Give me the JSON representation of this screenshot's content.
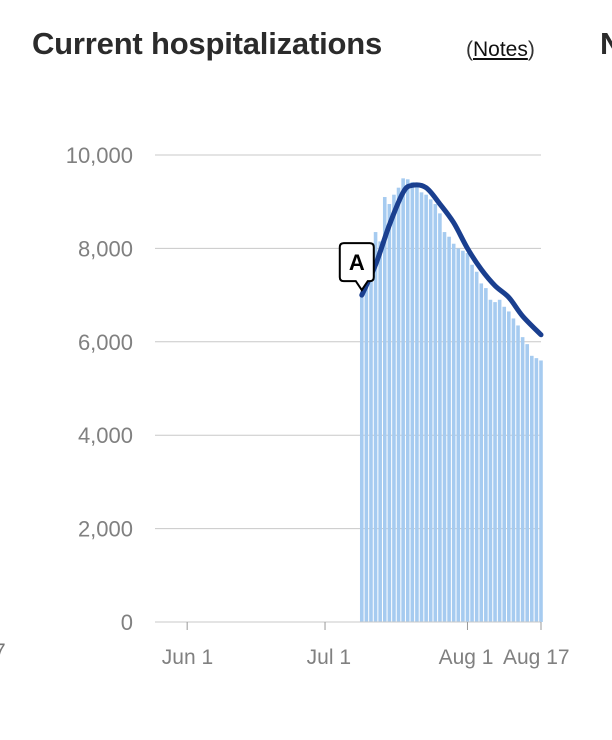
{
  "header": {
    "title": "Current hospitalizations",
    "notes_open": "(",
    "notes_link": "Notes",
    "notes_close": ")",
    "next_title_fragment": "N",
    "prev_tick_fragment": "7"
  },
  "colors": {
    "bars": "#a6cbf0",
    "line": "#1a3f8f",
    "grid": "#c8c8c8",
    "axis_text": "#808080"
  },
  "chart_data": {
    "type": "bar",
    "title": "Current hospitalizations",
    "xlabel": "",
    "ylabel": "",
    "ylim": [
      0,
      10000
    ],
    "yticks": [
      0,
      2000,
      4000,
      6000,
      8000,
      10000
    ],
    "ytick_labels": [
      "0",
      "2,000",
      "4,000",
      "6,000",
      "8,000",
      "10,000"
    ],
    "xlim": [
      "2020-05-25",
      "2020-08-17"
    ],
    "xticks": [
      "2020-06-01",
      "2020-07-01",
      "2020-08-01",
      "2020-08-17"
    ],
    "xtick_labels": [
      "Jun 1",
      "Jul 1",
      "Aug 1",
      "Aug 17"
    ],
    "grid": true,
    "series": [
      {
        "type": "bar",
        "x": [
          "2020-07-09",
          "2020-07-10",
          "2020-07-11",
          "2020-07-12",
          "2020-07-13",
          "2020-07-14",
          "2020-07-15",
          "2020-07-16",
          "2020-07-17",
          "2020-07-18",
          "2020-07-19",
          "2020-07-20",
          "2020-07-21",
          "2020-07-22",
          "2020-07-23",
          "2020-07-24",
          "2020-07-25",
          "2020-07-26",
          "2020-07-27",
          "2020-07-28",
          "2020-07-29",
          "2020-07-30",
          "2020-07-31",
          "2020-08-01",
          "2020-08-02",
          "2020-08-03",
          "2020-08-04",
          "2020-08-05",
          "2020-08-06",
          "2020-08-07",
          "2020-08-08",
          "2020-08-09",
          "2020-08-10",
          "2020-08-11",
          "2020-08-12",
          "2020-08-13",
          "2020-08-14",
          "2020-08-15",
          "2020-08-16",
          "2020-08-17"
        ],
        "values": [
          7000,
          7300,
          7650,
          8350,
          8150,
          9100,
          8950,
          9150,
          9300,
          9500,
          9480,
          9420,
          9350,
          9200,
          9150,
          9050,
          8950,
          8750,
          8350,
          8250,
          8100,
          8000,
          7950,
          7900,
          7650,
          7500,
          7250,
          7150,
          6900,
          6850,
          6900,
          6750,
          6650,
          6500,
          6350,
          6100,
          5950,
          5700,
          5650,
          5600
        ]
      },
      {
        "type": "line",
        "x": [
          "2020-07-09",
          "2020-07-12",
          "2020-07-15",
          "2020-07-18",
          "2020-07-20",
          "2020-07-23",
          "2020-07-26",
          "2020-07-29",
          "2020-08-01",
          "2020-08-04",
          "2020-08-07",
          "2020-08-10",
          "2020-08-13",
          "2020-08-17"
        ],
        "values": [
          7000,
          7650,
          8500,
          9200,
          9350,
          9300,
          8950,
          8550,
          8000,
          7550,
          7200,
          6950,
          6550,
          6150
        ]
      }
    ],
    "annotations": [
      {
        "label": "A",
        "date": "2020-07-09"
      }
    ]
  }
}
